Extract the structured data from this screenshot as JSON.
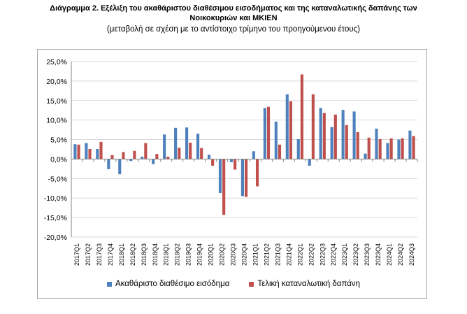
{
  "chart_data": {
    "type": "bar",
    "title": "Διάγραμμα 2. Εξέλιξη του ακαθάριστου διαθέσιμου εισοδήματος και της καταναλωτικής δαπάνης των",
    "title_line2": "Νοικοκυριών και ΜΚΙΕΝ",
    "subtitle": "(μεταβολή σε σχέση με το αντίστοιχο τρίμηνο του προηγούμενου έτους)",
    "xlabel": "",
    "ylabel": "",
    "ylim": [
      -20,
      25
    ],
    "yticks": [
      25,
      20,
      15,
      10,
      5,
      0,
      -5,
      -10,
      -15,
      -20
    ],
    "ytick_labels": [
      "25,0%",
      "20,0%",
      "15,0%",
      "10,0%",
      "5,0%",
      "0,0%",
      "-5,0%",
      "-10,0%",
      "-15,0%",
      "-20,0%"
    ],
    "categories": [
      "2017Q1",
      "2017Q2",
      "2017Q3",
      "2017Q4",
      "2018Q1",
      "2018Q2",
      "2018Q3",
      "2018Q4",
      "2019Q1",
      "2019Q2",
      "2019Q3",
      "2019Q4",
      "2020Q1",
      "2020Q2",
      "2020Q3",
      "2020Q4",
      "2021Q1",
      "2021Q2",
      "2021Q3",
      "2021Q4",
      "2022Q1",
      "2022Q2",
      "2022Q3",
      "2022Q4",
      "2023Q1",
      "2023Q2",
      "2023Q3",
      "2023Q4",
      "2024Q1",
      "2024Q2",
      "2024Q3"
    ],
    "series": [
      {
        "name": "Ακαθάριστο διαθέσιμο εισόδημα",
        "color": "#4f81bd",
        "values": [
          3.8,
          4.1,
          2.6,
          -2.6,
          -3.9,
          -0.5,
          0.6,
          -1.3,
          6.3,
          8.0,
          8.1,
          6.5,
          1.1,
          -8.7,
          -0.8,
          -9.5,
          2.0,
          13.1,
          9.6,
          16.6,
          5.1,
          -1.7,
          13.1,
          8.2,
          12.6,
          12.2,
          1.4,
          7.8,
          4.1,
          5.0,
          7.3
        ]
      },
      {
        "name": "Τελική καταναλωτική δαπάνη",
        "color": "#c0504d",
        "values": [
          3.7,
          2.6,
          4.4,
          1.0,
          1.8,
          2.1,
          4.1,
          1.3,
          0.6,
          2.9,
          4.2,
          2.8,
          -1.7,
          -14.3,
          -2.7,
          -9.7,
          -7.0,
          13.4,
          3.7,
          14.8,
          21.7,
          16.6,
          11.8,
          11.4,
          8.7,
          6.9,
          5.5,
          5.1,
          5.3,
          5.3,
          5.9
        ]
      }
    ],
    "legend_position": "bottom"
  }
}
